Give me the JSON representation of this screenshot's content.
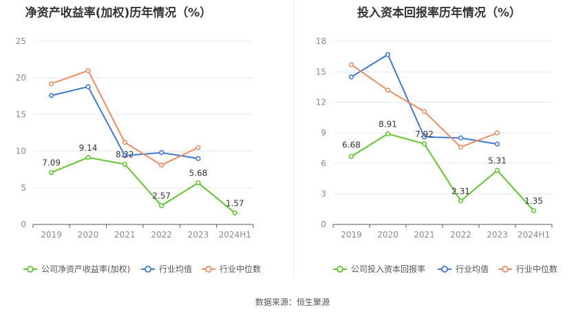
{
  "source_label": "数据来源：恒生聚源",
  "colors": {
    "company": "#5cc72a",
    "average": "#3a78d8",
    "median": "#f08a5d",
    "grid": "#e8e8ee",
    "axis": "#555555"
  },
  "chart_data": [
    {
      "type": "line",
      "title": "净资产收益率(加权)历年情况（%）",
      "categories": [
        "2019",
        "2020",
        "2021",
        "2022",
        "2023",
        "2024H1"
      ],
      "ylim": [
        0,
        25
      ],
      "yticks": [
        0,
        5,
        10,
        15,
        20,
        25
      ],
      "grid": true,
      "legend_position": "bottom",
      "series": [
        {
          "name": "公司净资产收益率(加权)",
          "key": "company",
          "values": [
            7.09,
            9.14,
            8.22,
            2.57,
            5.68,
            1.57
          ],
          "labels": [
            "7.09",
            "9.14",
            "8.22",
            "2.57",
            "5.68",
            "1.57"
          ]
        },
        {
          "name": "行业均值",
          "key": "average",
          "values": [
            17.6,
            18.8,
            9.4,
            9.8,
            9.0,
            null
          ]
        },
        {
          "name": "行业中位数",
          "key": "median",
          "values": [
            19.2,
            21.0,
            11.2,
            8.1,
            10.5,
            null
          ]
        }
      ]
    },
    {
      "type": "line",
      "title": "投入资本回报率历年情况（%）",
      "categories": [
        "2019",
        "2020",
        "2021",
        "2022",
        "2023",
        "2024H1"
      ],
      "ylim": [
        0,
        18
      ],
      "yticks": [
        0,
        3,
        6,
        9,
        12,
        15,
        18
      ],
      "grid": true,
      "legend_position": "bottom",
      "series": [
        {
          "name": "公司投入资本回报率",
          "key": "company",
          "values": [
            6.68,
            8.91,
            7.92,
            2.31,
            5.31,
            1.35
          ],
          "labels": [
            "6.68",
            "8.91",
            "7.92",
            "2.31",
            "5.31",
            "1.35"
          ]
        },
        {
          "name": "行业均值",
          "key": "average",
          "values": [
            14.5,
            16.7,
            8.6,
            8.5,
            7.9,
            null
          ]
        },
        {
          "name": "行业中位数",
          "key": "median",
          "values": [
            15.7,
            13.2,
            11.1,
            7.6,
            9.0,
            null
          ]
        }
      ]
    }
  ]
}
